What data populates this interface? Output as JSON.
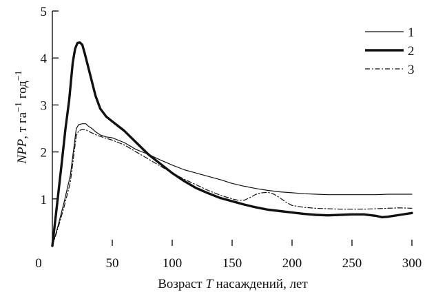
{
  "chart_data": {
    "type": "line",
    "xlabel": {
      "pre": "Возраст ",
      "italic": "T",
      "post": " насаждений, лет"
    },
    "ylabel": {
      "italic": "NPP",
      "mid": ", т га",
      "sup1": "−1",
      "mid2": " год",
      "sup2": "−1"
    },
    "xlim": [
      0,
      300
    ],
    "ylim": [
      0,
      5
    ],
    "xticks": [
      0,
      50,
      100,
      150,
      200,
      250,
      300
    ],
    "yticks": [
      1,
      2,
      3,
      4,
      5
    ],
    "grid": false,
    "legend_position": "top-right",
    "series": [
      {
        "name": "1",
        "style": "thin-solid",
        "color": "#111111",
        "x": [
          0,
          5,
          10,
          15,
          18,
          20,
          22,
          25,
          28,
          30,
          33,
          36,
          40,
          45,
          50,
          60,
          70,
          80,
          90,
          100,
          110,
          120,
          130,
          140,
          150,
          160,
          170,
          180,
          190,
          200,
          210,
          220,
          230,
          240,
          250,
          260,
          270,
          280,
          290,
          300
        ],
        "y": [
          0,
          0.45,
          0.95,
          1.5,
          2.1,
          2.5,
          2.58,
          2.6,
          2.6,
          2.55,
          2.5,
          2.43,
          2.36,
          2.32,
          2.3,
          2.2,
          2.05,
          1.95,
          1.83,
          1.72,
          1.62,
          1.55,
          1.48,
          1.41,
          1.33,
          1.27,
          1.22,
          1.18,
          1.15,
          1.13,
          1.11,
          1.1,
          1.09,
          1.09,
          1.09,
          1.09,
          1.09,
          1.1,
          1.1,
          1.1
        ]
      },
      {
        "name": "2",
        "style": "thick-solid",
        "color": "#111111",
        "x": [
          0,
          4,
          8,
          11,
          14,
          17,
          19,
          21,
          23,
          25,
          27,
          30,
          33,
          36,
          40,
          45,
          50,
          55,
          60,
          70,
          80,
          90,
          100,
          110,
          120,
          130,
          140,
          150,
          160,
          170,
          180,
          190,
          200,
          210,
          220,
          230,
          240,
          250,
          260,
          270,
          275,
          280,
          290,
          300
        ],
        "y": [
          0,
          0.9,
          1.8,
          2.5,
          3.1,
          3.9,
          4.2,
          4.32,
          4.33,
          4.28,
          4.1,
          3.8,
          3.5,
          3.2,
          2.92,
          2.75,
          2.65,
          2.55,
          2.45,
          2.2,
          1.95,
          1.75,
          1.55,
          1.38,
          1.23,
          1.12,
          1.02,
          0.95,
          0.88,
          0.82,
          0.77,
          0.74,
          0.71,
          0.68,
          0.66,
          0.65,
          0.66,
          0.67,
          0.67,
          0.64,
          0.61,
          0.62,
          0.66,
          0.7
        ]
      },
      {
        "name": "3",
        "style": "dash-dot",
        "color": "#111111",
        "x": [
          0,
          5,
          10,
          15,
          18,
          20,
          22,
          25,
          28,
          30,
          35,
          40,
          50,
          60,
          70,
          80,
          90,
          100,
          110,
          120,
          130,
          140,
          150,
          155,
          160,
          165,
          170,
          175,
          180,
          185,
          190,
          195,
          200,
          210,
          220,
          230,
          240,
          250,
          260,
          270,
          280,
          290,
          300
        ],
        "y": [
          0,
          0.4,
          0.85,
          1.35,
          1.95,
          2.35,
          2.45,
          2.48,
          2.47,
          2.44,
          2.38,
          2.33,
          2.25,
          2.15,
          2.0,
          1.85,
          1.7,
          1.55,
          1.42,
          1.3,
          1.18,
          1.08,
          1.0,
          0.97,
          0.97,
          1.03,
          1.1,
          1.13,
          1.14,
          1.1,
          1.02,
          0.93,
          0.86,
          0.82,
          0.8,
          0.79,
          0.78,
          0.78,
          0.78,
          0.79,
          0.8,
          0.81,
          0.8
        ]
      }
    ]
  }
}
